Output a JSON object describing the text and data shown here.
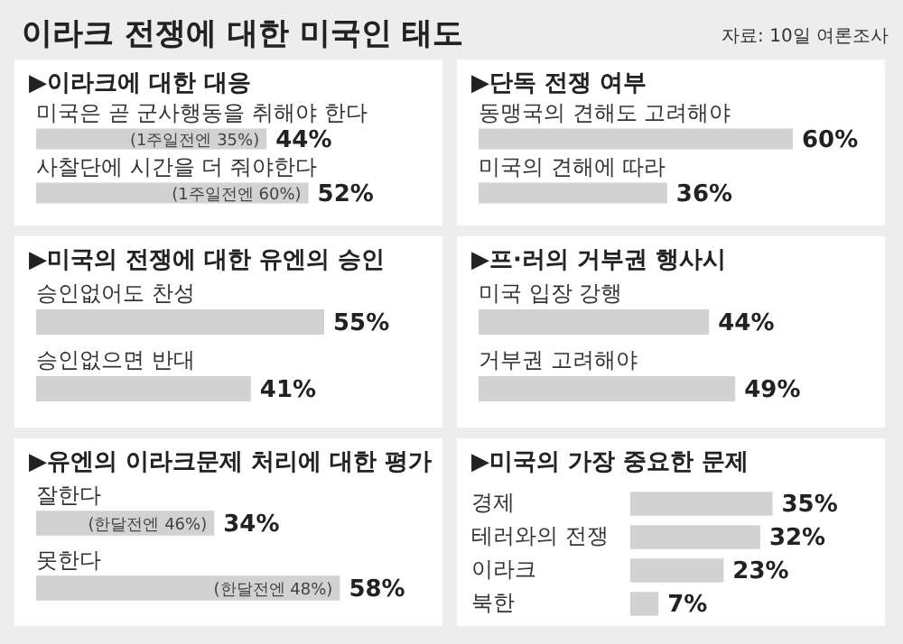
{
  "chart_data": [
    {
      "type": "other",
      "title": "이라크 전쟁에 대한 미국인 태도",
      "annotations": [
        "자료: 10일 여론조사"
      ]
    },
    {
      "type": "bar",
      "orientation": "horizontal",
      "title": "▶이라크에 대한 대응",
      "categories": [
        "미국은 곧 군사행동을 취해야 한다",
        "사찰단에 시간을 더 줘야한다"
      ],
      "values": [
        44,
        52
      ],
      "value_labels": [
        "44%",
        "52%"
      ],
      "color": "#d2d2d2",
      "tick_labels": false,
      "legend": false,
      "annotations": [
        "(1주일전엔 35%)",
        "(1주일전엔 60%)"
      ]
    },
    {
      "type": "bar",
      "orientation": "horizontal",
      "title": "▶단독 전쟁 여부",
      "categories": [
        "동맹국의 견해도 고려해야",
        "미국의 견해에 따라"
      ],
      "values": [
        60,
        36
      ],
      "value_labels": [
        "60%",
        "36%"
      ],
      "color": "#d2d2d2",
      "tick_labels": false,
      "legend": false
    },
    {
      "type": "bar",
      "orientation": "horizontal",
      "title": "▶미국의 전쟁에 대한 유엔의 승인",
      "categories": [
        "승인없어도 찬성",
        "승인없으면 반대"
      ],
      "values": [
        55,
        41
      ],
      "value_labels": [
        "55%",
        "41%"
      ],
      "color": "#d2d2d2",
      "tick_labels": false,
      "legend": false
    },
    {
      "type": "bar",
      "orientation": "horizontal",
      "title": "▶프·러의 거부권 행사시",
      "categories": [
        "미국 입장 강행",
        "거부권 고려해야"
      ],
      "values": [
        44,
        49
      ],
      "value_labels": [
        "44%",
        "49%"
      ],
      "color": "#d2d2d2",
      "tick_labels": false,
      "legend": false
    },
    {
      "type": "bar",
      "orientation": "horizontal",
      "title": "▶유엔의 이라크문제 처리에 대한 평가",
      "categories": [
        "잘한다",
        "못한다"
      ],
      "values": [
        34,
        58
      ],
      "value_labels": [
        "34%",
        "58%"
      ],
      "color": "#d2d2d2",
      "tick_labels": false,
      "legend": false,
      "annotations": [
        "(한달전엔 46%)",
        "(한달전엔 48%)"
      ]
    },
    {
      "type": "bar",
      "orientation": "horizontal",
      "title": "▶미국의 가장 중요한 문제",
      "categories": [
        "경제",
        "테러와의 전쟁",
        "이라크",
        "북한"
      ],
      "values": [
        35,
        32,
        23,
        7
      ],
      "value_labels": [
        "35%",
        "32%",
        "23%",
        "7%"
      ],
      "color": "#d2d2d2",
      "tick_labels": "y",
      "legend": false
    }
  ]
}
